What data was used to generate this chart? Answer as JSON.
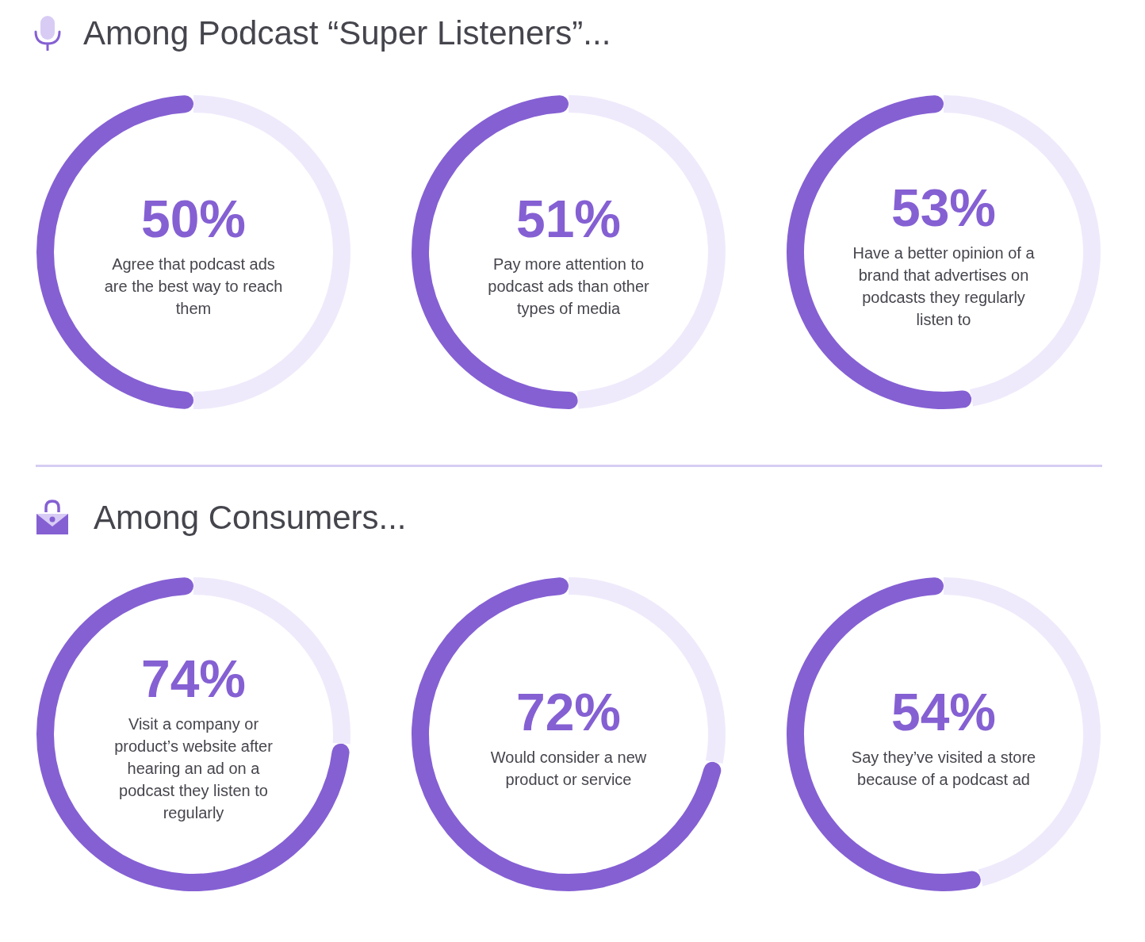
{
  "chart_data": [
    {
      "type": "other",
      "title": "Among Podcast “Super Listeners”..."
    },
    {
      "type": "donut",
      "categories": [
        "Agree that podcast ads are the best way to reach them",
        null
      ],
      "values": [
        50,
        50
      ],
      "colors": [
        "#8560d3",
        "#efeafb"
      ],
      "value_labels": [
        "50%",
        null
      ]
    },
    {
      "type": "donut",
      "categories": [
        "Pay more attention to podcast ads than other types of media",
        null
      ],
      "values": [
        51,
        49
      ],
      "colors": [
        "#8560d3",
        "#efeafb"
      ],
      "value_labels": [
        "51%",
        null
      ]
    },
    {
      "type": "donut",
      "categories": [
        "Have a better opinion of a brand that advertises on podcasts they regularly listen to",
        null
      ],
      "values": [
        53,
        47
      ],
      "colors": [
        "#8560d3",
        "#efeafb"
      ],
      "value_labels": [
        "53%",
        null
      ]
    },
    {
      "type": "other",
      "title": "Among Consumers..."
    },
    {
      "type": "donut",
      "categories": [
        "Visit a company or product’s website after hearing an ad on a podcast they listen to regularly",
        null
      ],
      "values": [
        74,
        26
      ],
      "colors": [
        "#8560d3",
        "#efeafb"
      ],
      "value_labels": [
        "74%",
        null
      ]
    },
    {
      "type": "donut",
      "categories": [
        "Would consider a new product or service",
        null
      ],
      "values": [
        72,
        28
      ],
      "colors": [
        "#8560d3",
        "#efeafb"
      ],
      "value_labels": [
        "72%",
        null
      ]
    },
    {
      "type": "donut",
      "categories": [
        "Say they’ve visited a store because of a podcast ad",
        null
      ],
      "values": [
        54,
        46
      ],
      "colors": [
        "#8560d3",
        "#efeafb"
      ],
      "value_labels": [
        "54%",
        null
      ]
    }
  ]
}
